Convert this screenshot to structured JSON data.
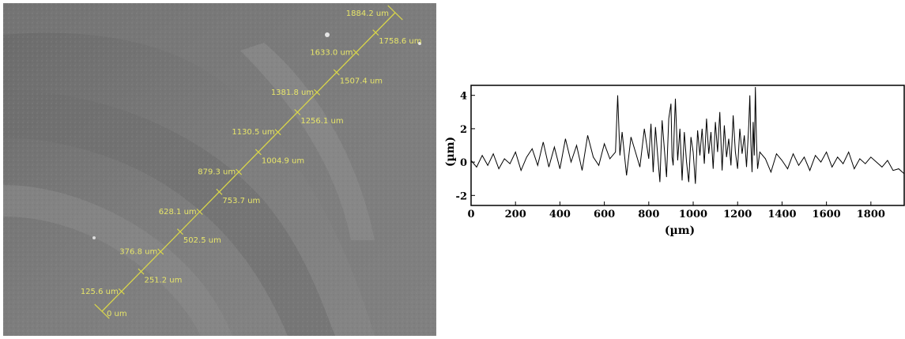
{
  "sem_image": {
    "measure_color": "#d9d64a",
    "scale_labels": [
      "0 um",
      "125.6 um",
      "251.2 um",
      "376.8 um",
      "502.5 um",
      "628.1 um",
      "753.7 um",
      "879.3 um",
      "1004.9 um",
      "1130.5 um",
      "1256.1 um",
      "1381.8 um",
      "1507.4 um",
      "1633.0 um",
      "1758.6 um",
      "1884.2 um"
    ]
  },
  "chart_data": {
    "type": "line",
    "xlabel": "(µm)",
    "ylabel": "(µm)",
    "xlim": [
      0,
      1950
    ],
    "ylim": [
      -2.6,
      4.6
    ],
    "x_ticks": [
      0,
      200,
      400,
      600,
      800,
      1000,
      1200,
      1400,
      1600,
      1800
    ],
    "x_tick_labels": [
      "0",
      "200",
      "400",
      "600",
      "800",
      "1000",
      "1200",
      "1400",
      "1600",
      "1800"
    ],
    "y_ticks": [
      -2,
      0,
      2,
      4
    ],
    "y_tick_labels": [
      "-2",
      "0",
      "2",
      "4"
    ],
    "grid": false,
    "series": [
      {
        "color": "#000000",
        "x": [
          0,
          25,
          50,
          75,
          100,
          125,
          150,
          175,
          200,
          225,
          250,
          275,
          300,
          325,
          350,
          375,
          400,
          425,
          450,
          475,
          500,
          525,
          550,
          575,
          600,
          625,
          650,
          660,
          670,
          680,
          700,
          720,
          740,
          760,
          780,
          800,
          810,
          820,
          830,
          840,
          850,
          860,
          870,
          880,
          890,
          900,
          905,
          910,
          915,
          920,
          930,
          940,
          950,
          960,
          970,
          980,
          990,
          1000,
          1010,
          1020,
          1030,
          1040,
          1050,
          1060,
          1070,
          1080,
          1090,
          1100,
          1110,
          1120,
          1130,
          1140,
          1150,
          1160,
          1170,
          1180,
          1190,
          1200,
          1210,
          1220,
          1230,
          1240,
          1250,
          1255,
          1260,
          1265,
          1270,
          1275,
          1280,
          1285,
          1290,
          1300,
          1325,
          1350,
          1375,
          1400,
          1425,
          1450,
          1475,
          1500,
          1525,
          1550,
          1575,
          1600,
          1625,
          1650,
          1675,
          1700,
          1725,
          1750,
          1775,
          1800,
          1825,
          1850,
          1875,
          1900,
          1925,
          1950
        ],
        "y": [
          0.1,
          -0.3,
          0.4,
          -0.2,
          0.5,
          -0.4,
          0.2,
          -0.1,
          0.6,
          -0.5,
          0.3,
          0.8,
          -0.2,
          1.2,
          -0.3,
          0.9,
          -0.4,
          1.4,
          0.0,
          1.0,
          -0.5,
          1.6,
          0.3,
          -0.2,
          1.1,
          0.2,
          0.6,
          4.0,
          0.4,
          1.8,
          -0.8,
          1.5,
          0.6,
          -0.3,
          2.0,
          0.2,
          2.3,
          -0.6,
          2.1,
          0.4,
          -1.2,
          2.5,
          0.8,
          -0.9,
          2.6,
          3.5,
          0.3,
          -0.2,
          2.0,
          3.8,
          0.1,
          2.0,
          -1.1,
          1.8,
          0.0,
          -1.2,
          1.5,
          0.6,
          -1.3,
          1.9,
          0.4,
          2.0,
          -0.1,
          2.6,
          0.5,
          1.8,
          -0.4,
          2.4,
          0.6,
          3.0,
          -0.5,
          2.2,
          0.3,
          1.4,
          -0.2,
          2.8,
          0.6,
          -0.4,
          2.0,
          0.5,
          1.6,
          -0.3,
          2.2,
          4.0,
          1.0,
          -0.6,
          2.4,
          0.4,
          4.5,
          1.2,
          -0.4,
          0.6,
          0.2,
          -0.6,
          0.5,
          0.1,
          -0.4,
          0.5,
          -0.2,
          0.3,
          -0.5,
          0.4,
          0.0,
          0.6,
          -0.3,
          0.3,
          -0.1,
          0.6,
          -0.4,
          0.2,
          -0.1,
          0.3,
          0.0,
          -0.3,
          0.1,
          -0.5,
          -0.4,
          -0.7
        ]
      }
    ]
  }
}
